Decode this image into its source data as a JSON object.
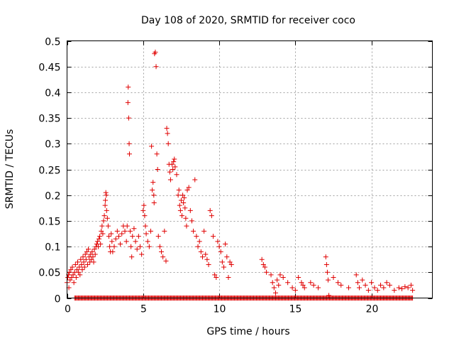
{
  "chart_data": {
    "type": "scatter",
    "title": "Day 108 of 2020, SRMTID for receiver coco",
    "xlabel": "GPS time / hours",
    "ylabel": "SRMTID / TECUs",
    "xlim": [
      0,
      24
    ],
    "ylim": [
      0,
      0.5
    ],
    "xticks": [
      0,
      5,
      10,
      15,
      20
    ],
    "xtick_labels": [
      "0",
      "5",
      "10",
      "15",
      "20"
    ],
    "yticks": [
      0,
      0.05,
      0.1,
      0.15,
      0.2,
      0.25,
      0.3,
      0.35,
      0.4,
      0.45,
      0.5
    ],
    "ytick_labels": [
      "0",
      "0.05",
      "0.1",
      "0.15",
      "0.2",
      "0.25",
      "0.3",
      "0.35",
      "0.4",
      "0.45",
      "0.5"
    ],
    "grid": true,
    "marker": "+",
    "color": "#e00000",
    "series": [
      {
        "name": "SRMTID",
        "points": [
          [
            0.0,
            0.03
          ],
          [
            0.05,
            0.04
          ],
          [
            0.1,
            0.045
          ],
          [
            0.12,
            0.02
          ],
          [
            0.15,
            0.05
          ],
          [
            0.2,
            0.035
          ],
          [
            0.25,
            0.055
          ],
          [
            0.3,
            0.04
          ],
          [
            0.35,
            0.06
          ],
          [
            0.4,
            0.045
          ],
          [
            0.45,
            0.03
          ],
          [
            0.5,
            0.05
          ],
          [
            0.55,
            0.065
          ],
          [
            0.6,
            0.04
          ],
          [
            0.65,
            0.055
          ],
          [
            0.7,
            0.07
          ],
          [
            0.75,
            0.05
          ],
          [
            0.8,
            0.06
          ],
          [
            0.85,
            0.045
          ],
          [
            0.9,
            0.075
          ],
          [
            0.95,
            0.065
          ],
          [
            1.0,
            0.055
          ],
          [
            1.05,
            0.08
          ],
          [
            1.1,
            0.07
          ],
          [
            1.15,
            0.06
          ],
          [
            1.2,
            0.085
          ],
          [
            1.25,
            0.075
          ],
          [
            1.3,
            0.09
          ],
          [
            1.35,
            0.065
          ],
          [
            1.4,
            0.095
          ],
          [
            1.45,
            0.08
          ],
          [
            1.5,
            0.07
          ],
          [
            1.55,
            0.085
          ],
          [
            1.6,
            0.075
          ],
          [
            1.65,
            0.09
          ],
          [
            1.7,
            0.08
          ],
          [
            1.75,
            0.07
          ],
          [
            1.8,
            0.095
          ],
          [
            1.85,
            0.085
          ],
          [
            1.9,
            0.1
          ],
          [
            1.95,
            0.105
          ],
          [
            2.0,
            0.11
          ],
          [
            2.05,
            0.1
          ],
          [
            2.1,
            0.115
          ],
          [
            2.15,
            0.12
          ],
          [
            2.2,
            0.105
          ],
          [
            2.25,
            0.13
          ],
          [
            2.3,
            0.14
          ],
          [
            2.35,
            0.125
          ],
          [
            2.4,
            0.15
          ],
          [
            2.45,
            0.16
          ],
          [
            2.5,
            0.18
          ],
          [
            2.52,
            0.19
          ],
          [
            2.55,
            0.205
          ],
          [
            2.58,
            0.2
          ],
          [
            2.6,
            0.17
          ],
          [
            2.65,
            0.155
          ],
          [
            2.7,
            0.14
          ],
          [
            2.75,
            0.12
          ],
          [
            2.8,
            0.1
          ],
          [
            2.85,
            0.09
          ],
          [
            2.9,
            0.125
          ],
          [
            2.95,
            0.11
          ],
          [
            3.0,
            0.09
          ],
          [
            3.1,
            0.1
          ],
          [
            3.2,
            0.115
          ],
          [
            3.3,
            0.13
          ],
          [
            3.4,
            0.12
          ],
          [
            3.5,
            0.105
          ],
          [
            3.6,
            0.125
          ],
          [
            3.7,
            0.14
          ],
          [
            3.8,
            0.13
          ],
          [
            3.9,
            0.11
          ],
          [
            3.95,
            0.14
          ],
          [
            4.0,
            0.38
          ],
          [
            4.02,
            0.41
          ],
          [
            4.05,
            0.35
          ],
          [
            4.08,
            0.3
          ],
          [
            4.1,
            0.28
          ],
          [
            4.15,
            0.13
          ],
          [
            4.2,
            0.1
          ],
          [
            4.25,
            0.08
          ],
          [
            4.3,
            0.12
          ],
          [
            4.4,
            0.135
          ],
          [
            4.5,
            0.11
          ],
          [
            4.6,
            0.095
          ],
          [
            4.7,
            0.12
          ],
          [
            4.8,
            0.1
          ],
          [
            4.9,
            0.085
          ],
          [
            5.0,
            0.17
          ],
          [
            5.05,
            0.18
          ],
          [
            5.1,
            0.16
          ],
          [
            5.15,
            0.14
          ],
          [
            5.2,
            0.125
          ],
          [
            5.3,
            0.11
          ],
          [
            5.4,
            0.1
          ],
          [
            5.5,
            0.13
          ],
          [
            5.55,
            0.295
          ],
          [
            5.6,
            0.21
          ],
          [
            5.65,
            0.225
          ],
          [
            5.7,
            0.2
          ],
          [
            5.72,
            0.185
          ],
          [
            5.75,
            0.475
          ],
          [
            5.8,
            0.478
          ],
          [
            5.85,
            0.45
          ],
          [
            5.9,
            0.28
          ],
          [
            5.95,
            0.25
          ],
          [
            6.0,
            0.12
          ],
          [
            6.1,
            0.1
          ],
          [
            6.2,
            0.09
          ],
          [
            6.3,
            0.08
          ],
          [
            6.4,
            0.13
          ],
          [
            6.5,
            0.072
          ],
          [
            6.55,
            0.33
          ],
          [
            6.6,
            0.32
          ],
          [
            6.65,
            0.3
          ],
          [
            6.7,
            0.26
          ],
          [
            6.75,
            0.245
          ],
          [
            6.8,
            0.23
          ],
          [
            6.9,
            0.26
          ],
          [
            6.95,
            0.25
          ],
          [
            7.0,
            0.265
          ],
          [
            7.05,
            0.27
          ],
          [
            7.1,
            0.255
          ],
          [
            7.2,
            0.24
          ],
          [
            7.3,
            0.2
          ],
          [
            7.35,
            0.21
          ],
          [
            7.4,
            0.18
          ],
          [
            7.45,
            0.17
          ],
          [
            7.5,
            0.19
          ],
          [
            7.55,
            0.16
          ],
          [
            7.6,
            0.2
          ],
          [
            7.65,
            0.185
          ],
          [
            7.7,
            0.195
          ],
          [
            7.75,
            0.175
          ],
          [
            7.8,
            0.155
          ],
          [
            7.85,
            0.14
          ],
          [
            7.9,
            0.21
          ],
          [
            8.0,
            0.215
          ],
          [
            8.1,
            0.17
          ],
          [
            8.2,
            0.15
          ],
          [
            8.3,
            0.13
          ],
          [
            8.4,
            0.23
          ],
          [
            8.5,
            0.12
          ],
          [
            8.6,
            0.1
          ],
          [
            8.7,
            0.11
          ],
          [
            8.8,
            0.09
          ],
          [
            8.9,
            0.08
          ],
          [
            9.0,
            0.13
          ],
          [
            9.1,
            0.085
          ],
          [
            9.2,
            0.075
          ],
          [
            9.3,
            0.065
          ],
          [
            9.4,
            0.17
          ],
          [
            9.5,
            0.16
          ],
          [
            9.6,
            0.12
          ],
          [
            9.7,
            0.045
          ],
          [
            9.8,
            0.04
          ],
          [
            9.9,
            0.11
          ],
          [
            10.0,
            0.1
          ],
          [
            10.1,
            0.09
          ],
          [
            10.2,
            0.07
          ],
          [
            10.3,
            0.06
          ],
          [
            10.4,
            0.105
          ],
          [
            10.5,
            0.08
          ],
          [
            10.6,
            0.04
          ],
          [
            10.7,
            0.07
          ],
          [
            10.8,
            0.065
          ],
          [
            12.8,
            0.075
          ],
          [
            12.9,
            0.065
          ],
          [
            13.0,
            0.06
          ],
          [
            13.1,
            0.05
          ],
          [
            13.4,
            0.045
          ],
          [
            13.5,
            0.03
          ],
          [
            13.6,
            0.02
          ],
          [
            13.7,
            0.01
          ],
          [
            13.8,
            0.035
          ],
          [
            13.9,
            0.025
          ],
          [
            14.0,
            0.045
          ],
          [
            14.2,
            0.04
          ],
          [
            14.5,
            0.03
          ],
          [
            14.8,
            0.02
          ],
          [
            15.0,
            0.015
          ],
          [
            15.2,
            0.04
          ],
          [
            15.4,
            0.03
          ],
          [
            15.5,
            0.025
          ],
          [
            15.6,
            0.02
          ],
          [
            16.0,
            0.03
          ],
          [
            16.2,
            0.025
          ],
          [
            16.5,
            0.02
          ],
          [
            17.0,
            0.08
          ],
          [
            17.05,
            0.065
          ],
          [
            17.1,
            0.05
          ],
          [
            17.15,
            0.035
          ],
          [
            17.2,
            0.005
          ],
          [
            17.5,
            0.04
          ],
          [
            17.8,
            0.03
          ],
          [
            18.0,
            0.025
          ],
          [
            18.5,
            0.02
          ],
          [
            19.0,
            0.045
          ],
          [
            19.1,
            0.03
          ],
          [
            19.2,
            0.02
          ],
          [
            19.4,
            0.035
          ],
          [
            19.6,
            0.025
          ],
          [
            19.8,
            0.015
          ],
          [
            20.0,
            0.03
          ],
          [
            20.2,
            0.02
          ],
          [
            20.4,
            0.015
          ],
          [
            20.6,
            0.025
          ],
          [
            20.8,
            0.02
          ],
          [
            21.0,
            0.03
          ],
          [
            21.2,
            0.025
          ],
          [
            21.5,
            0.015
          ],
          [
            21.8,
            0.02
          ],
          [
            22.0,
            0.018
          ],
          [
            22.2,
            0.022
          ],
          [
            22.4,
            0.02
          ],
          [
            22.6,
            0.025
          ],
          [
            22.7,
            0.015
          ]
        ],
        "zero_runs": [
          [
            0.5,
            22.7
          ]
        ]
      }
    ]
  }
}
